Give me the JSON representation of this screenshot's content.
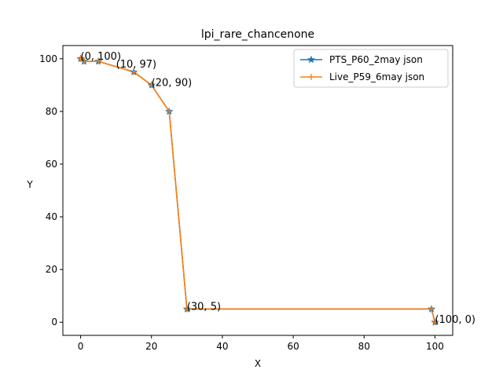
{
  "chart_data": {
    "type": "line",
    "title": "lpi_rare_chancenone",
    "xlabel": "X",
    "ylabel": "Y",
    "xlim": [
      -5,
      105
    ],
    "ylim": [
      -5,
      105
    ],
    "xticks": [
      0,
      20,
      40,
      60,
      80,
      100
    ],
    "yticks": [
      0,
      20,
      40,
      60,
      80,
      100
    ],
    "grid": false,
    "legend_position": "top-right",
    "series": [
      {
        "name": "PTS_P60_2may json",
        "color": "#1f77b4",
        "marker": "star",
        "x": [
          0,
          1,
          5,
          15,
          20,
          25,
          30,
          99,
          100
        ],
        "y": [
          100,
          99,
          99,
          95,
          90,
          80,
          5,
          5,
          0
        ]
      },
      {
        "name": "Live_P59_6may json",
        "color": "#ff7f0e",
        "marker": "plus",
        "x": [
          0,
          1,
          5,
          15,
          20,
          25,
          30,
          99,
          100
        ],
        "y": [
          100,
          99,
          99,
          95,
          90,
          80,
          5,
          5,
          0
        ]
      }
    ],
    "annotations": [
      {
        "text": "(0, 100)",
        "x": 0,
        "y": 100
      },
      {
        "text": "(10, 97)",
        "x": 10,
        "y": 97
      },
      {
        "text": "(20, 90)",
        "x": 20,
        "y": 90
      },
      {
        "text": "(30, 5)",
        "x": 30,
        "y": 5
      },
      {
        "text": "(100, 0)",
        "x": 100,
        "y": 0
      }
    ]
  }
}
